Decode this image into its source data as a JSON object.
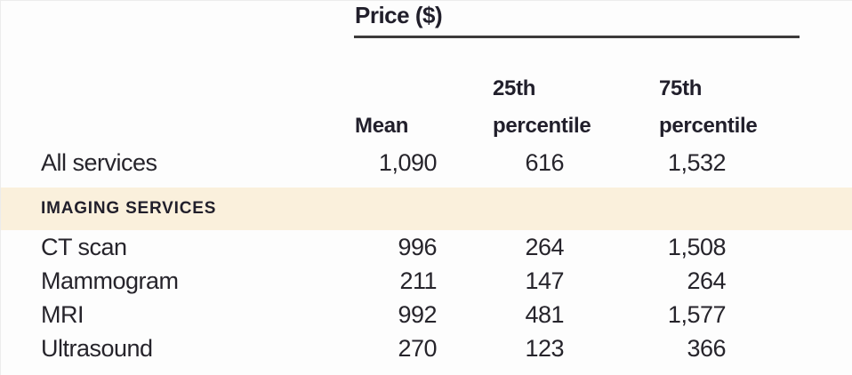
{
  "price_table": {
    "spanner_title": "Price ($)",
    "columns": {
      "mean": "Mean",
      "p25_line1": "25th",
      "p25_line2": "percentile",
      "p75_line1": "75th",
      "p75_line2": "percentile"
    },
    "rows": [
      {
        "service": "All services",
        "mean": "1,090",
        "p25": "616",
        "p75": "1,532"
      }
    ],
    "section_header": "IMAGING SERVICES",
    "imaging_rows": [
      {
        "service": "CT scan",
        "mean": "996",
        "p25": "264",
        "p75": "1,508"
      },
      {
        "service": "Mammogram",
        "mean": "211",
        "p25": "147",
        "p75": "264"
      },
      {
        "service": "MRI",
        "mean": "992",
        "p25": "481",
        "p75": "1,577"
      },
      {
        "service": "Ultrasound",
        "mean": "270",
        "p25": "123",
        "p75": "366"
      }
    ],
    "colors": {
      "section_band_background": "#faf0dc",
      "text": "#26242b",
      "rule": "#3c3b3b"
    }
  }
}
